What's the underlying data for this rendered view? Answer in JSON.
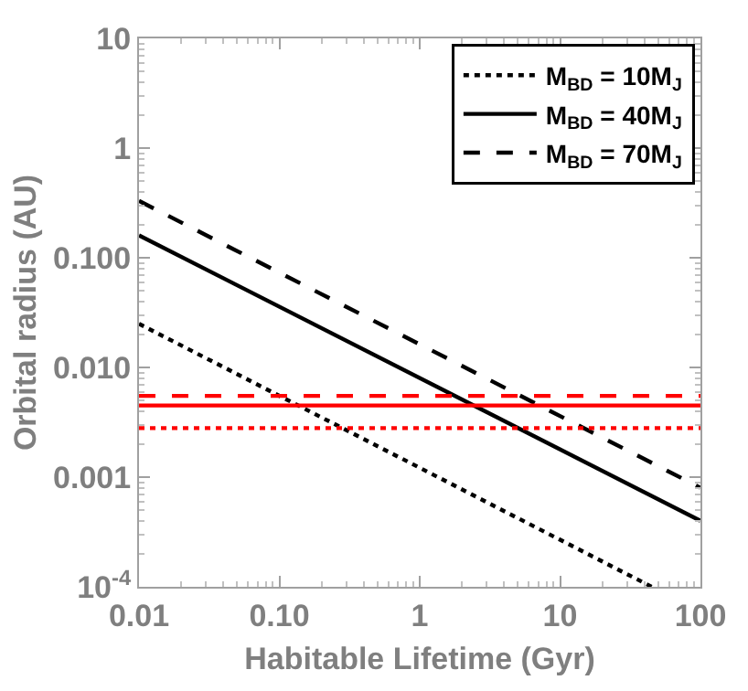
{
  "chart_data": {
    "type": "line",
    "xlabel": "Habitable Lifetime (Gyr)",
    "ylabel": "Orbital radius (AU)",
    "log": "xy",
    "xlim": [
      0.01,
      100
    ],
    "ylim": [
      0.0001,
      10
    ],
    "xticks": [
      0.01,
      {
        "value": 0.1,
        "label": "0.10"
      },
      1,
      10,
      100
    ],
    "yticks": [
      {
        "value": 0.0001,
        "label": "10$^{-4}$"
      },
      0.001,
      {
        "value": 0.01,
        "label": "0.010"
      },
      {
        "value": 0.1,
        "label": "0.100"
      },
      1,
      10
    ],
    "legend": "top right",
    "series": [
      {
        "name": "M$_{BD}$ = 10M$_{J}$",
        "color": "#000000",
        "line_style": "dotted",
        "x": [
          0.01,
          45
        ],
        "values": [
          0.025,
          0.0001
        ]
      },
      {
        "name": "M$_{BD}$ = 40M$_{J}$",
        "color": "#000000",
        "line_style": "solid",
        "x": [
          0.01,
          100
        ],
        "values": [
          0.16,
          0.0004
        ]
      },
      {
        "name": "M$_{BD}$ = 70M$_{J}$",
        "color": "#000000",
        "line_style": "dashed",
        "x": [
          0.01,
          100
        ],
        "values": [
          0.33,
          0.0008
        ]
      }
    ],
    "ref_lines": [
      {
        "axis": "y",
        "value": 0.0055,
        "color": "#ff0000",
        "line_style": "dashed"
      },
      {
        "axis": "y",
        "value": 0.0045,
        "color": "#ff0000",
        "line_style": "solid"
      },
      {
        "axis": "y",
        "value": 0.0028,
        "color": "#ff0000",
        "line_style": "dotted"
      }
    ]
  }
}
